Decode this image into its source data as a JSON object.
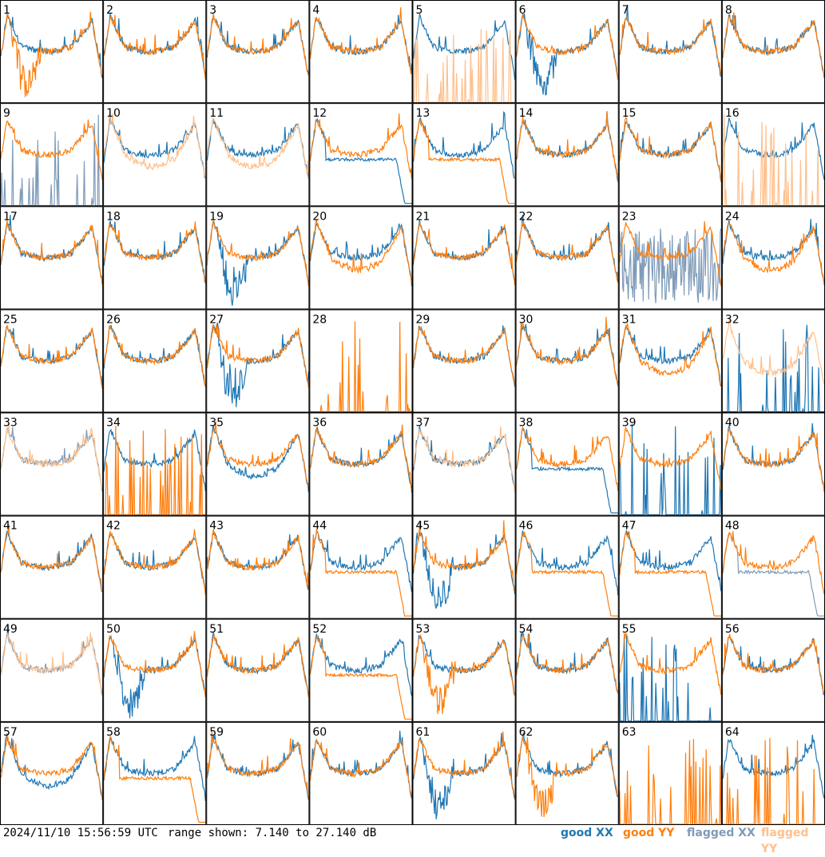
{
  "footer": {
    "timestamp": "2024/11/10 15:56:59 UTC",
    "range_text": "range shown: 7.140 to 27.140 dB"
  },
  "legend": [
    {
      "key": "good_xx",
      "label": "good XX",
      "color": "#1f77b4"
    },
    {
      "key": "good_yy",
      "label": "good YY",
      "color": "#ff7f0e"
    },
    {
      "key": "flagged_xx",
      "label": "flagged XX",
      "color": "#7f9bb8"
    },
    {
      "key": "flagged_yy",
      "label": "flagged YY",
      "color": "#ffc08c"
    }
  ],
  "chart_data": {
    "type": "line",
    "layout": "small multiples, 8 columns x 8 rows",
    "ylim_db": [
      7.14,
      27.14
    ],
    "grid": false,
    "legend_placement": "bottom-right",
    "panels": [
      {
        "id": 1,
        "xx": "good",
        "yy": "good",
        "xx_shape": "normal",
        "yy_shape": "dip"
      },
      {
        "id": 2,
        "xx": "good",
        "yy": "good",
        "xx_shape": "normal",
        "yy_shape": "normal"
      },
      {
        "id": 3,
        "xx": "good",
        "yy": "good",
        "xx_shape": "normal",
        "yy_shape": "normal"
      },
      {
        "id": 4,
        "xx": "good",
        "yy": "good",
        "xx_shape": "normal",
        "yy_shape": "normal"
      },
      {
        "id": 5,
        "xx": "good",
        "yy": "flagged",
        "xx_shape": "normal",
        "yy_shape": "spikes"
      },
      {
        "id": 6,
        "xx": "good",
        "yy": "good",
        "xx_shape": "dip",
        "yy_shape": "normal"
      },
      {
        "id": 7,
        "xx": "good",
        "yy": "good",
        "xx_shape": "normal",
        "yy_shape": "normal"
      },
      {
        "id": 8,
        "xx": "good",
        "yy": "good",
        "xx_shape": "normal",
        "yy_shape": "normal"
      },
      {
        "id": 9,
        "xx": "flagged",
        "yy": "good",
        "xx_shape": "spikes",
        "yy_shape": "normal"
      },
      {
        "id": 10,
        "xx": "good",
        "yy": "flagged",
        "xx_shape": "normal",
        "yy_shape": "low"
      },
      {
        "id": 11,
        "xx": "good",
        "yy": "flagged",
        "xx_shape": "normal",
        "yy_shape": "low"
      },
      {
        "id": 12,
        "xx": "good",
        "yy": "good",
        "xx_shape": "drop",
        "yy_shape": "normal"
      },
      {
        "id": 13,
        "xx": "good",
        "yy": "good",
        "xx_shape": "normal",
        "yy_shape": "drop"
      },
      {
        "id": 14,
        "xx": "good",
        "yy": "good",
        "xx_shape": "normal",
        "yy_shape": "normal"
      },
      {
        "id": 15,
        "xx": "good",
        "yy": "good",
        "xx_shape": "normal",
        "yy_shape": "normal"
      },
      {
        "id": 16,
        "xx": "good",
        "yy": "flagged",
        "xx_shape": "normal",
        "yy_shape": "spikes"
      },
      {
        "id": 17,
        "xx": "good",
        "yy": "good",
        "xx_shape": "normal",
        "yy_shape": "normal"
      },
      {
        "id": 18,
        "xx": "good",
        "yy": "good",
        "xx_shape": "normal",
        "yy_shape": "normal"
      },
      {
        "id": 19,
        "xx": "good",
        "yy": "good",
        "xx_shape": "dip",
        "yy_shape": "normal"
      },
      {
        "id": 20,
        "xx": "good",
        "yy": "good",
        "xx_shape": "normal",
        "yy_shape": "low"
      },
      {
        "id": 21,
        "xx": "good",
        "yy": "good",
        "xx_shape": "normal",
        "yy_shape": "normal"
      },
      {
        "id": 22,
        "xx": "good",
        "yy": "good",
        "xx_shape": "normal",
        "yy_shape": "normal"
      },
      {
        "id": 23,
        "xx": "flagged",
        "yy": "good",
        "xx_shape": "noise",
        "yy_shape": "normal"
      },
      {
        "id": 24,
        "xx": "good",
        "yy": "good",
        "xx_shape": "normal",
        "yy_shape": "low"
      },
      {
        "id": 25,
        "xx": "good",
        "yy": "good",
        "xx_shape": "normal",
        "yy_shape": "normal"
      },
      {
        "id": 26,
        "xx": "good",
        "yy": "good",
        "xx_shape": "normal",
        "yy_shape": "normal"
      },
      {
        "id": 27,
        "xx": "good",
        "yy": "good",
        "xx_shape": "dip",
        "yy_shape": "normal"
      },
      {
        "id": 28,
        "xx": "none",
        "yy": "good",
        "xx_shape": "none",
        "yy_shape": "spikes"
      },
      {
        "id": 29,
        "xx": "good",
        "yy": "good",
        "xx_shape": "normal",
        "yy_shape": "normal"
      },
      {
        "id": 30,
        "xx": "good",
        "yy": "good",
        "xx_shape": "normal",
        "yy_shape": "normal"
      },
      {
        "id": 31,
        "xx": "good",
        "yy": "good",
        "xx_shape": "normal",
        "yy_shape": "low"
      },
      {
        "id": 32,
        "xx": "good",
        "yy": "flagged",
        "xx_shape": "spikes",
        "yy_shape": "low"
      },
      {
        "id": 33,
        "xx": "flagged",
        "yy": "flagged",
        "xx_shape": "normal",
        "yy_shape": "normal"
      },
      {
        "id": 34,
        "xx": "good",
        "yy": "good",
        "xx_shape": "normal",
        "yy_shape": "spikes"
      },
      {
        "id": 35,
        "xx": "good",
        "yy": "good",
        "xx_shape": "low",
        "yy_shape": "normal"
      },
      {
        "id": 36,
        "xx": "good",
        "yy": "good",
        "xx_shape": "normal",
        "yy_shape": "normal"
      },
      {
        "id": 37,
        "xx": "good",
        "yy": "flagged",
        "xx_shape": "normal",
        "yy_shape": "normal"
      },
      {
        "id": 38,
        "xx": "good",
        "yy": "good",
        "xx_shape": "drop",
        "yy_shape": "normal"
      },
      {
        "id": 39,
        "xx": "good",
        "yy": "good",
        "xx_shape": "spikes",
        "yy_shape": "normal"
      },
      {
        "id": 40,
        "xx": "good",
        "yy": "good",
        "xx_shape": "normal",
        "yy_shape": "normal"
      },
      {
        "id": 41,
        "xx": "good",
        "yy": "good",
        "xx_shape": "normal",
        "yy_shape": "normal"
      },
      {
        "id": 42,
        "xx": "good",
        "yy": "good",
        "xx_shape": "normal",
        "yy_shape": "normal"
      },
      {
        "id": 43,
        "xx": "good",
        "yy": "good",
        "xx_shape": "normal",
        "yy_shape": "normal"
      },
      {
        "id": 44,
        "xx": "good",
        "yy": "good",
        "xx_shape": "normal",
        "yy_shape": "drop"
      },
      {
        "id": 45,
        "xx": "good",
        "yy": "good",
        "xx_shape": "dip",
        "yy_shape": "normal"
      },
      {
        "id": 46,
        "xx": "good",
        "yy": "good",
        "xx_shape": "normal",
        "yy_shape": "drop"
      },
      {
        "id": 47,
        "xx": "good",
        "yy": "good",
        "xx_shape": "normal",
        "yy_shape": "drop"
      },
      {
        "id": 48,
        "xx": "flagged",
        "yy": "good",
        "xx_shape": "drop",
        "yy_shape": "normal"
      },
      {
        "id": 49,
        "xx": "flagged",
        "yy": "flagged",
        "xx_shape": "normal",
        "yy_shape": "normal"
      },
      {
        "id": 50,
        "xx": "good",
        "yy": "good",
        "xx_shape": "dip",
        "yy_shape": "normal"
      },
      {
        "id": 51,
        "xx": "good",
        "yy": "good",
        "xx_shape": "normal",
        "yy_shape": "normal"
      },
      {
        "id": 52,
        "xx": "good",
        "yy": "good",
        "xx_shape": "normal",
        "yy_shape": "drop"
      },
      {
        "id": 53,
        "xx": "good",
        "yy": "good",
        "xx_shape": "normal",
        "yy_shape": "dip"
      },
      {
        "id": 54,
        "xx": "good",
        "yy": "good",
        "xx_shape": "normal",
        "yy_shape": "normal"
      },
      {
        "id": 55,
        "xx": "good",
        "yy": "good",
        "xx_shape": "spikes",
        "yy_shape": "normal"
      },
      {
        "id": 56,
        "xx": "good",
        "yy": "good",
        "xx_shape": "normal",
        "yy_shape": "normal"
      },
      {
        "id": 57,
        "xx": "good",
        "yy": "good",
        "xx_shape": "low",
        "yy_shape": "normal"
      },
      {
        "id": 58,
        "xx": "good",
        "yy": "good",
        "xx_shape": "normal",
        "yy_shape": "drop"
      },
      {
        "id": 59,
        "xx": "good",
        "yy": "good",
        "xx_shape": "normal",
        "yy_shape": "normal"
      },
      {
        "id": 60,
        "xx": "good",
        "yy": "good",
        "xx_shape": "normal",
        "yy_shape": "normal"
      },
      {
        "id": 61,
        "xx": "good",
        "yy": "good",
        "xx_shape": "dip",
        "yy_shape": "normal"
      },
      {
        "id": 62,
        "xx": "good",
        "yy": "good",
        "xx_shape": "normal",
        "yy_shape": "dip"
      },
      {
        "id": 63,
        "xx": "none",
        "yy": "good",
        "xx_shape": "none",
        "yy_shape": "spikes"
      },
      {
        "id": 64,
        "xx": "good",
        "yy": "good",
        "xx_shape": "normal",
        "yy_shape": "spikes"
      }
    ]
  }
}
